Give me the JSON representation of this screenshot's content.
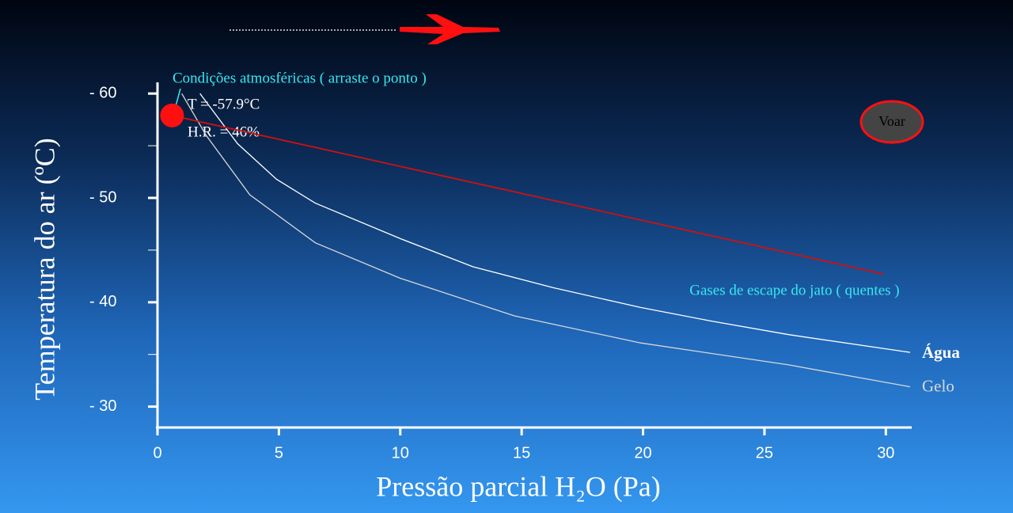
{
  "chart_data": {
    "type": "line",
    "x_label": "Pressão parcial H₂O (Pa)",
    "y_label": "Temperatura do ar (ºC)",
    "xlim": [
      0,
      31
    ],
    "ylim": [
      -28,
      -61
    ],
    "xticks": [
      0,
      5,
      10,
      15,
      20,
      25,
      30
    ],
    "yticks": [
      {
        "value": -60,
        "label": "- 60"
      },
      {
        "value": -50,
        "label": "- 50"
      },
      {
        "value": -40,
        "label": "- 40"
      },
      {
        "value": -30,
        "label": "- 30"
      }
    ],
    "minor_yticks": [
      -55,
      -45,
      -35
    ],
    "series": [
      {
        "name": "Água",
        "color": "#ffffff",
        "x": [
          1.75,
          3.3,
          4.9,
          6.5,
          10,
          13,
          16.3,
          19.9,
          22.8,
          26,
          31
        ],
        "values": [
          -60,
          -55.2,
          -51.8,
          -49.5,
          -46.1,
          -43.4,
          -41.4,
          -39.5,
          -38.2,
          -36.9,
          -35.2
        ]
      },
      {
        "name": "Gelo",
        "color": "#d8d8d8",
        "x": [
          1.0,
          2.0,
          3.8,
          6.5,
          10,
          14.7,
          19.9,
          26,
          31
        ],
        "values": [
          -60,
          -56,
          -50.3,
          -45.7,
          -42.3,
          -38.7,
          -36.1,
          -34,
          -31.9
        ]
      },
      {
        "name": "Gases de escape do jato ( quentes )",
        "color": "#d01010",
        "x": [
          0.6,
          29.9
        ],
        "values": [
          -57.9,
          -42.7
        ]
      }
    ],
    "point": {
      "x": 0.6,
      "y": -57.9,
      "color": "#ff1010"
    },
    "annotations": {
      "point_title": "Condições atmosféricas ( arraste o ponto )",
      "temperature": "T = -57.9°C",
      "humidity": "H.R. = 46%"
    },
    "button": "Voar"
  }
}
